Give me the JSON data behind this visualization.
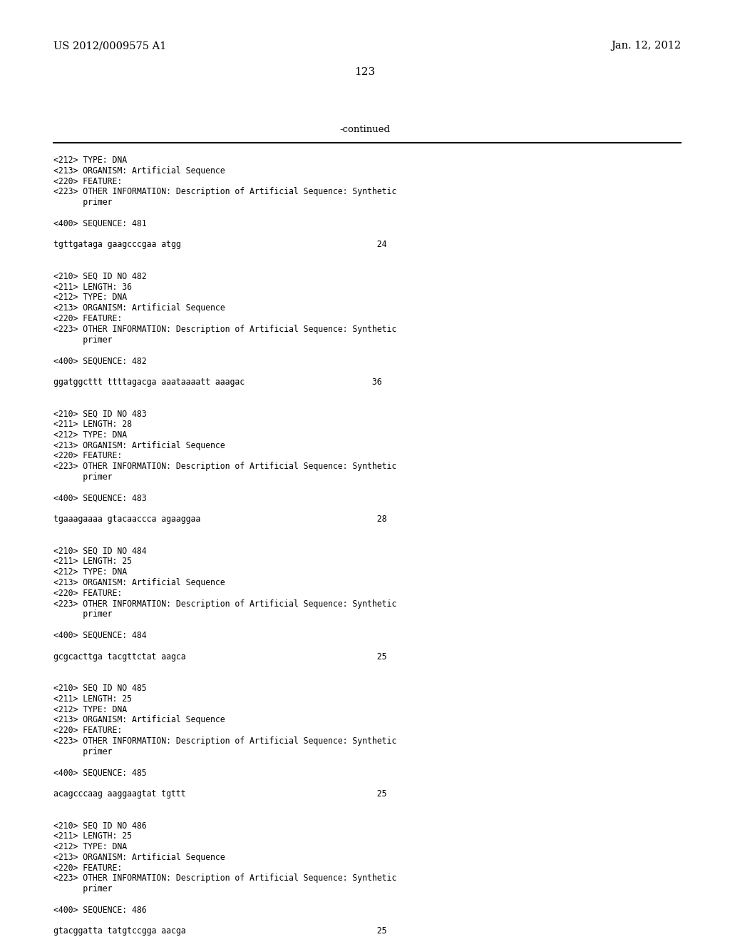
{
  "header_left": "US 2012/0009575 A1",
  "header_right": "Jan. 12, 2012",
  "page_number": "123",
  "continued_label": "-continued",
  "background_color": "#ffffff",
  "text_color": "#000000",
  "content_lines": [
    "<212> TYPE: DNA",
    "<213> ORGANISM: Artificial Sequence",
    "<220> FEATURE:",
    "<223> OTHER INFORMATION: Description of Artificial Sequence: Synthetic",
    "      primer",
    "",
    "<400> SEQUENCE: 481",
    "",
    "tgttgataga gaagcccgaa atgg                                        24",
    "",
    "",
    "<210> SEQ ID NO 482",
    "<211> LENGTH: 36",
    "<212> TYPE: DNA",
    "<213> ORGANISM: Artificial Sequence",
    "<220> FEATURE:",
    "<223> OTHER INFORMATION: Description of Artificial Sequence: Synthetic",
    "      primer",
    "",
    "<400> SEQUENCE: 482",
    "",
    "ggatggcttt ttttagacga aaataaaatt aaagac                          36",
    "",
    "",
    "<210> SEQ ID NO 483",
    "<211> LENGTH: 28",
    "<212> TYPE: DNA",
    "<213> ORGANISM: Artificial Sequence",
    "<220> FEATURE:",
    "<223> OTHER INFORMATION: Description of Artificial Sequence: Synthetic",
    "      primer",
    "",
    "<400> SEQUENCE: 483",
    "",
    "tgaaagaaaa gtacaaccca agaaggaa                                    28",
    "",
    "",
    "<210> SEQ ID NO 484",
    "<211> LENGTH: 25",
    "<212> TYPE: DNA",
    "<213> ORGANISM: Artificial Sequence",
    "<220> FEATURE:",
    "<223> OTHER INFORMATION: Description of Artificial Sequence: Synthetic",
    "      primer",
    "",
    "<400> SEQUENCE: 484",
    "",
    "gcgcacttga tacgttctat aagca                                       25",
    "",
    "",
    "<210> SEQ ID NO 485",
    "<211> LENGTH: 25",
    "<212> TYPE: DNA",
    "<213> ORGANISM: Artificial Sequence",
    "<220> FEATURE:",
    "<223> OTHER INFORMATION: Description of Artificial Sequence: Synthetic",
    "      primer",
    "",
    "<400> SEQUENCE: 485",
    "",
    "acagcccaag aaggaagtat tgttt                                       25",
    "",
    "",
    "<210> SEQ ID NO 486",
    "<211> LENGTH: 25",
    "<212> TYPE: DNA",
    "<213> ORGANISM: Artificial Sequence",
    "<220> FEATURE:",
    "<223> OTHER INFORMATION: Description of Artificial Sequence: Synthetic",
    "      primer",
    "",
    "<400> SEQUENCE: 486",
    "",
    "gtacggatta tatgtccgga aacga                                       25"
  ]
}
